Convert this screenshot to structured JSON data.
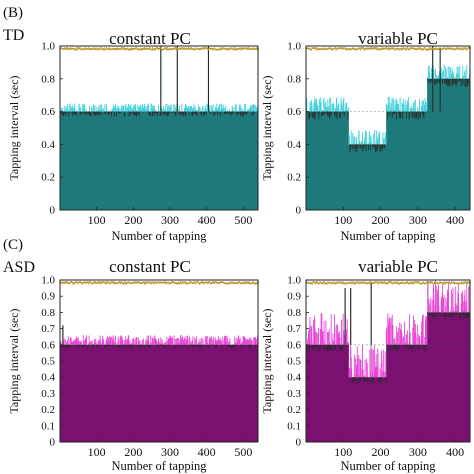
{
  "panel_labels": {
    "b": "(B)",
    "c": "(C)"
  },
  "group_labels": {
    "td": "TD",
    "asd": "ASD"
  },
  "colors": {
    "td_fill": "#1e7a7a",
    "td_overshoot": "#46d2dc",
    "asd_fill": "#7a1070",
    "asd_overshoot": "#e848d8",
    "undershoot": "#2a2a2a",
    "event_marks": "#b8952a"
  },
  "chart_data": [
    {
      "id": "td-constant",
      "type": "bar",
      "group": "TD",
      "title": "constant PC",
      "xlabel": "Number of tapping",
      "ylabel": "Tapping interval (sec)",
      "xlim": [
        0,
        540
      ],
      "ylim": [
        0,
        1.0
      ],
      "xticks": [
        100,
        200,
        300,
        400,
        500
      ],
      "yticks": [
        0,
        0.2,
        0.4,
        0.6,
        0.8,
        1.0
      ],
      "ytick_labels": [
        "0",
        "0.2",
        "0.4",
        "0.6",
        "0.8",
        "1.0"
      ],
      "pacing_segments": [
        {
          "from": 1,
          "to": 540,
          "value": 0.6
        }
      ],
      "noise_above": 0.05,
      "noise_below": 0.03,
      "spikes": [
        {
          "x": 275,
          "value": 1.0
        },
        {
          "x": 320,
          "value": 1.0
        },
        {
          "x": 405,
          "value": 1.0
        }
      ],
      "top_marks": true
    },
    {
      "id": "td-variable",
      "type": "bar",
      "group": "TD",
      "title": "variable PC",
      "xlabel": "Number of tapping",
      "ylabel": "Tapping interval (sec)",
      "xlim": [
        0,
        440
      ],
      "ylim": [
        0,
        1.0
      ],
      "xticks": [
        100,
        200,
        300,
        400
      ],
      "yticks": [
        0,
        0.2,
        0.4,
        0.6,
        0.8,
        1.0
      ],
      "ytick_labels": [
        "0",
        "0.2",
        "0.4",
        "0.6",
        "0.8",
        "1.0"
      ],
      "pacing_segments": [
        {
          "from": 1,
          "to": 115,
          "value": 0.6
        },
        {
          "from": 116,
          "to": 215,
          "value": 0.4
        },
        {
          "from": 216,
          "to": 325,
          "value": 0.6
        },
        {
          "from": 326,
          "to": 440,
          "value": 0.8
        }
      ],
      "noise_above": 0.09,
      "noise_below": 0.05,
      "spikes": [
        {
          "x": 340,
          "value": 1.0
        },
        {
          "x": 360,
          "value": 0.99
        }
      ],
      "top_marks": true
    },
    {
      "id": "asd-constant",
      "type": "bar",
      "group": "ASD",
      "title": "constant PC",
      "xlabel": "Number of tapping",
      "ylabel": "Tapping interval (sec)",
      "xlim": [
        0,
        540
      ],
      "ylim": [
        0,
        1.0
      ],
      "xticks": [
        100,
        200,
        300,
        400,
        500
      ],
      "yticks": [
        0,
        0.1,
        0.2,
        0.3,
        0.4,
        0.5,
        0.6,
        0.7,
        0.8,
        0.9,
        1.0
      ],
      "ytick_labels": [
        "0",
        "0.1",
        "0.2",
        "0.3",
        "0.4",
        "0.5",
        "0.6",
        "0.7",
        "0.8",
        "0.9",
        "1.0"
      ],
      "pacing_segments": [
        {
          "from": 1,
          "to": 540,
          "value": 0.6
        }
      ],
      "noise_above": 0.06,
      "noise_below": 0.02,
      "spikes": [
        {
          "x": 8,
          "value": 0.72
        }
      ],
      "top_marks": true
    },
    {
      "id": "asd-variable",
      "type": "bar",
      "group": "ASD",
      "title": "variable PC",
      "xlabel": "Number of tapping",
      "ylabel": "Tapping interval (sec)",
      "xlim": [
        0,
        440
      ],
      "ylim": [
        0,
        1.0
      ],
      "xticks": [
        100,
        200,
        300,
        400
      ],
      "yticks": [
        0,
        0.1,
        0.2,
        0.3,
        0.4,
        0.5,
        0.6,
        0.7,
        0.8,
        0.9,
        1.0
      ],
      "ytick_labels": [
        "0",
        "0.1",
        "0.2",
        "0.3",
        "0.4",
        "0.5",
        "0.6",
        "0.7",
        "0.8",
        "0.9",
        "1.0"
      ],
      "pacing_segments": [
        {
          "from": 1,
          "to": 115,
          "value": 0.6
        },
        {
          "from": 116,
          "to": 215,
          "value": 0.4
        },
        {
          "from": 216,
          "to": 325,
          "value": 0.6
        },
        {
          "from": 326,
          "to": 440,
          "value": 0.8
        }
      ],
      "noise_above": 0.2,
      "noise_below": 0.04,
      "spikes": [
        {
          "x": 120,
          "value": 0.95
        },
        {
          "x": 175,
          "value": 0.98
        },
        {
          "x": 105,
          "value": 0.95
        }
      ],
      "top_marks": true
    }
  ]
}
